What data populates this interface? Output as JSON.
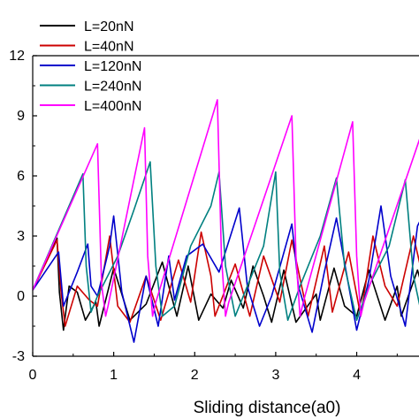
{
  "chart_data": {
    "type": "line",
    "title": "",
    "xlabel": "Sliding distance(a0)",
    "ylabel": "",
    "xlim": [
      0,
      4.9
    ],
    "ylim": [
      -3,
      12
    ],
    "x_ticks": [
      0,
      1,
      2,
      3,
      4
    ],
    "x_tick_labels": [
      "0",
      "1",
      "2",
      "3",
      "4"
    ],
    "y_ticks": [
      -3,
      0,
      3,
      6,
      9,
      12
    ],
    "y_tick_labels": [
      "-3",
      "0",
      "3",
      "6",
      "9",
      "12"
    ],
    "grid": false,
    "legend_position": "top-left",
    "series": [
      {
        "name": "L=20nN",
        "color": "#000000",
        "points": [
          [
            0,
            0.3
          ],
          [
            0.3,
            2.9
          ],
          [
            0.33,
            0.2
          ],
          [
            0.38,
            -1.7
          ],
          [
            0.45,
            0.5
          ],
          [
            0.55,
            0.2
          ],
          [
            0.65,
            -1.2
          ],
          [
            0.78,
            -0.3
          ],
          [
            0.82,
            -1.5
          ],
          [
            1.0,
            1.4
          ],
          [
            1.2,
            -1.2
          ],
          [
            1.4,
            -0.4
          ],
          [
            1.6,
            1.7
          ],
          [
            1.78,
            -1.0
          ],
          [
            1.92,
            1.5
          ],
          [
            2.05,
            -1.2
          ],
          [
            2.2,
            0.1
          ],
          [
            2.35,
            -0.6
          ],
          [
            2.45,
            0.8
          ],
          [
            2.6,
            -0.6
          ],
          [
            2.72,
            1.5
          ],
          [
            2.85,
            0.0
          ],
          [
            2.95,
            -1.3
          ],
          [
            3.1,
            1.3
          ],
          [
            3.25,
            -1.3
          ],
          [
            3.5,
            0.1
          ],
          [
            3.55,
            -1.2
          ],
          [
            3.72,
            1.4
          ],
          [
            3.85,
            -0.5
          ],
          [
            4.0,
            -1.0
          ],
          [
            4.15,
            1.3
          ],
          [
            4.35,
            -1.2
          ],
          [
            4.5,
            0.5
          ],
          [
            4.55,
            -1.0
          ],
          [
            4.75,
            1.3
          ],
          [
            4.9,
            -0.8
          ]
        ]
      },
      {
        "name": "L=40nN",
        "color": "#cc0000",
        "points": [
          [
            0,
            0.3
          ],
          [
            0.3,
            2.8
          ],
          [
            0.35,
            0.2
          ],
          [
            0.4,
            -1.5
          ],
          [
            0.55,
            0.5
          ],
          [
            0.7,
            -0.2
          ],
          [
            0.8,
            -0.5
          ],
          [
            0.95,
            3.0
          ],
          [
            1.05,
            -0.5
          ],
          [
            1.2,
            -1.3
          ],
          [
            1.4,
            1.0
          ],
          [
            1.58,
            -1.2
          ],
          [
            1.8,
            1.8
          ],
          [
            1.95,
            -0.3
          ],
          [
            2.08,
            3.2
          ],
          [
            2.2,
            1.0
          ],
          [
            2.25,
            -1.0
          ],
          [
            2.5,
            1.6
          ],
          [
            2.68,
            -1.0
          ],
          [
            2.85,
            2.0
          ],
          [
            3.05,
            -0.3
          ],
          [
            3.2,
            2.8
          ],
          [
            3.32,
            0.5
          ],
          [
            3.4,
            -1.0
          ],
          [
            3.6,
            2.5
          ],
          [
            3.7,
            -0.8
          ],
          [
            3.9,
            2.2
          ],
          [
            4.05,
            -1.0
          ],
          [
            4.2,
            3.0
          ],
          [
            4.35,
            0.5
          ],
          [
            4.5,
            -0.5
          ],
          [
            4.7,
            3.0
          ],
          [
            4.9,
            -0.5
          ]
        ]
      },
      {
        "name": "L=120nN",
        "color": "#0000cc",
        "points": [
          [
            0,
            0.3
          ],
          [
            0.32,
            2.2
          ],
          [
            0.38,
            -0.5
          ],
          [
            0.45,
            0.2
          ],
          [
            0.55,
            1.2
          ],
          [
            0.68,
            2.6
          ],
          [
            0.72,
            0.5
          ],
          [
            0.8,
            0.0
          ],
          [
            0.95,
            2.5
          ],
          [
            1.0,
            4.0
          ],
          [
            1.1,
            0.2
          ],
          [
            1.25,
            -2.3
          ],
          [
            1.4,
            1.0
          ],
          [
            1.55,
            -1.5
          ],
          [
            1.68,
            2.0
          ],
          [
            1.75,
            -0.2
          ],
          [
            1.9,
            2.0
          ],
          [
            2.1,
            2.6
          ],
          [
            2.3,
            1.2
          ],
          [
            2.55,
            4.4
          ],
          [
            2.65,
            0.5
          ],
          [
            2.8,
            -1.5
          ],
          [
            2.95,
            0.0
          ],
          [
            3.2,
            3.6
          ],
          [
            3.28,
            0.5
          ],
          [
            3.45,
            -1.8
          ],
          [
            3.6,
            1.2
          ],
          [
            3.75,
            3.9
          ],
          [
            3.88,
            1.0
          ],
          [
            4.0,
            -1.7
          ],
          [
            4.15,
            0.8
          ],
          [
            4.3,
            4.5
          ],
          [
            4.42,
            1.0
          ],
          [
            4.6,
            -1.5
          ],
          [
            4.75,
            3.5
          ],
          [
            4.9,
            4.7
          ]
        ]
      },
      {
        "name": "L=240nN",
        "color": "#008080",
        "points": [
          [
            0,
            0.3
          ],
          [
            0.62,
            6.1
          ],
          [
            0.66,
            1.5
          ],
          [
            0.72,
            -0.8
          ],
          [
            0.8,
            0.0
          ],
          [
            1.05,
            2.0
          ],
          [
            1.25,
            4.3
          ],
          [
            1.45,
            6.7
          ],
          [
            1.52,
            1.5
          ],
          [
            1.6,
            -1.0
          ],
          [
            1.75,
            -0.5
          ],
          [
            1.95,
            2.5
          ],
          [
            2.2,
            4.5
          ],
          [
            2.3,
            6.2
          ],
          [
            2.38,
            1.5
          ],
          [
            2.5,
            -1.0
          ],
          [
            2.65,
            0.5
          ],
          [
            2.85,
            2.5
          ],
          [
            3.0,
            6.2
          ],
          [
            3.05,
            1.2
          ],
          [
            3.15,
            -1.2
          ],
          [
            3.3,
            0.5
          ],
          [
            3.55,
            3.0
          ],
          [
            3.75,
            5.9
          ],
          [
            3.85,
            1.5
          ],
          [
            4.0,
            -1.2
          ],
          [
            4.15,
            0.5
          ],
          [
            4.4,
            2.5
          ],
          [
            4.6,
            5.8
          ],
          [
            4.7,
            1.0
          ],
          [
            4.78,
            -0.5
          ],
          [
            4.9,
            2.3
          ]
        ]
      },
      {
        "name": "L=400nN",
        "color": "#ff00ff",
        "points": [
          [
            0,
            0.3
          ],
          [
            0.8,
            7.6
          ],
          [
            0.85,
            0.6
          ],
          [
            0.9,
            -1.0
          ],
          [
            0.93,
            -0.5
          ],
          [
            1.38,
            8.4
          ],
          [
            1.42,
            2.0
          ],
          [
            1.48,
            -1.0
          ],
          [
            1.52,
            -0.3
          ],
          [
            2.28,
            9.8
          ],
          [
            2.33,
            2.0
          ],
          [
            2.38,
            -1.0
          ],
          [
            2.42,
            -0.3
          ],
          [
            3.2,
            9.0
          ],
          [
            3.25,
            2.0
          ],
          [
            3.3,
            -1.0
          ],
          [
            3.34,
            -0.3
          ],
          [
            3.95,
            8.7
          ],
          [
            4.0,
            2.0
          ],
          [
            4.05,
            -1.0
          ],
          [
            4.09,
            -0.3
          ],
          [
            4.9,
            9.3
          ]
        ]
      }
    ]
  }
}
